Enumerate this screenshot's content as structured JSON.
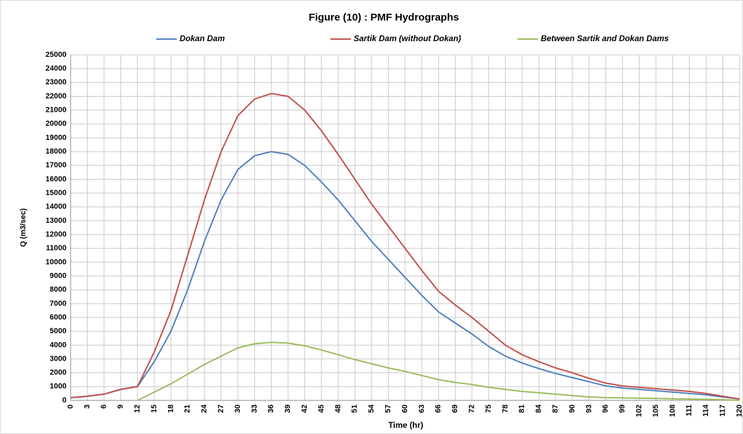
{
  "chart_data": {
    "type": "line",
    "title": "Figure (10) : PMF  Hydrographs",
    "xlabel": "Time (hr)",
    "ylabel": "Q (m3/sec)",
    "x": [
      0,
      3,
      6,
      9,
      12,
      15,
      18,
      21,
      24,
      27,
      30,
      33,
      36,
      39,
      42,
      45,
      48,
      51,
      54,
      57,
      60,
      63,
      66,
      69,
      72,
      75,
      78,
      81,
      84,
      87,
      90,
      93,
      96,
      99,
      102,
      105,
      108,
      111,
      114,
      117,
      120
    ],
    "series": [
      {
        "name": "Dokan Dam",
        "color": "#4f81bd",
        "values": [
          200,
          300,
          450,
          800,
          1000,
          2800,
          5000,
          8000,
          11500,
          14500,
          16700,
          17700,
          18000,
          17800,
          17000,
          15800,
          14500,
          13000,
          11500,
          10200,
          8900,
          7600,
          6400,
          5600,
          4800,
          3900,
          3200,
          2700,
          2300,
          1950,
          1650,
          1350,
          1050,
          900,
          800,
          700,
          600,
          500,
          400,
          250,
          100
        ]
      },
      {
        "name": "Sartik Dam (without Dokan)",
        "color": "#c0504d",
        "values": [
          200,
          300,
          450,
          800,
          1000,
          3500,
          6500,
          10500,
          14500,
          18000,
          20600,
          21800,
          22200,
          22000,
          21000,
          19500,
          17800,
          16000,
          14200,
          12600,
          11000,
          9400,
          7900,
          6900,
          6000,
          5000,
          4000,
          3300,
          2800,
          2350,
          2000,
          1600,
          1250,
          1050,
          950,
          850,
          750,
          650,
          500,
          300,
          100
        ]
      },
      {
        "name": "Between Sartik and Dokan Dams",
        "color": "#9bbb59",
        "values": [
          null,
          null,
          null,
          null,
          0,
          600,
          1200,
          1900,
          2600,
          3200,
          3800,
          4100,
          4200,
          4150,
          3950,
          3650,
          3300,
          2950,
          2650,
          2350,
          2100,
          1800,
          1500,
          1300,
          1150,
          950,
          800,
          650,
          550,
          450,
          350,
          250,
          200,
          180,
          160,
          140,
          120,
          100,
          80,
          50,
          0
        ]
      }
    ],
    "xlim": [
      0,
      120
    ],
    "xticks": [
      0,
      3,
      6,
      9,
      12,
      15,
      18,
      21,
      24,
      27,
      30,
      33,
      36,
      39,
      42,
      45,
      48,
      51,
      54,
      57,
      60,
      63,
      66,
      69,
      72,
      75,
      78,
      81,
      84,
      87,
      90,
      93,
      96,
      99,
      102,
      105,
      108,
      111,
      114,
      117,
      120
    ],
    "ylim": [
      0,
      25000
    ],
    "yticks": [
      0,
      1000,
      2000,
      3000,
      4000,
      5000,
      6000,
      7000,
      8000,
      9000,
      10000,
      11000,
      12000,
      13000,
      14000,
      15000,
      16000,
      17000,
      18000,
      19000,
      20000,
      21000,
      22000,
      23000,
      24000,
      25000
    ],
    "grid": true,
    "legend": "top"
  }
}
